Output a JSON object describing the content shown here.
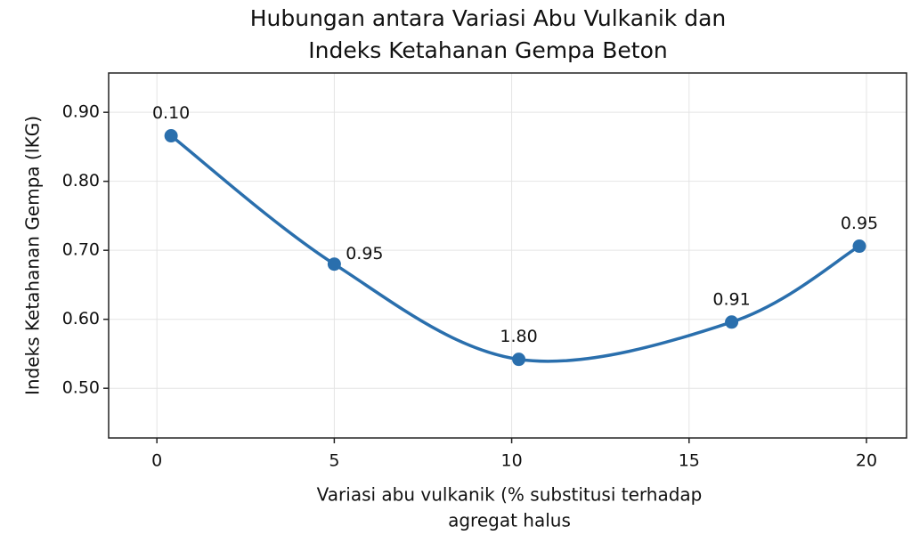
{
  "chart_data": {
    "type": "line",
    "title": [
      "Hubungan antara Variasi Abu Vulkanik dan",
      "Indeks Ketahanan Gempa Beton"
    ],
    "xlabel": [
      "Variasi abu vulkanik (% substitusi terhadap",
      "agregat halus"
    ],
    "ylabel": "Indeks Ketahanan Gempa (IKG)",
    "x": [
      0.4,
      5,
      10.2,
      16.2,
      19.8
    ],
    "series": [
      {
        "color": "#2a6fad",
        "values": [
          0.866,
          0.68,
          0.542,
          0.596,
          0.706
        ]
      }
    ],
    "annotations": [
      "0.10",
      "0.95",
      "1.80",
      "0.91",
      "0.95"
    ],
    "xlim": [
      -1.36,
      21.13
    ],
    "xticks": [
      0,
      5,
      10,
      15,
      20
    ],
    "ylim": [
      0.428,
      0.957
    ],
    "yticks": [
      {
        "value": 0.5,
        "label": "0.50"
      },
      {
        "value": 0.6,
        "label": "0.60"
      },
      {
        "value": 0.7,
        "label": "0.70"
      },
      {
        "value": 0.8,
        "label": "0.80"
      },
      {
        "value": 0.9,
        "label": "0.90"
      }
    ],
    "grid": true
  }
}
